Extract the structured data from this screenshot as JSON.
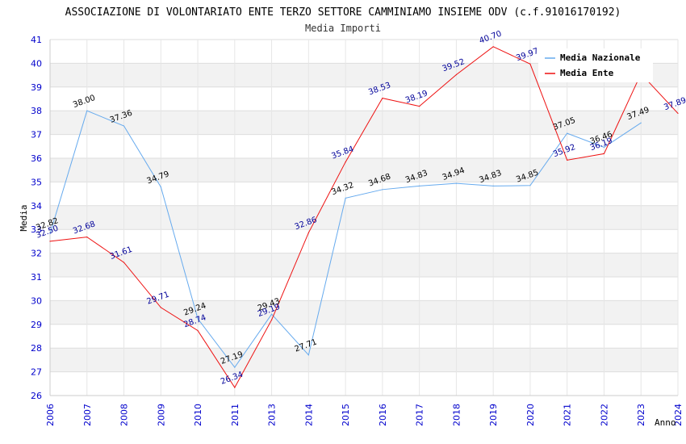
{
  "chart_data": {
    "type": "line",
    "title": "ASSOCIAZIONE DI VOLONTARIATO ENTE TERZO SETTORE CAMMINIAMO INSIEME ODV (c.f.91016170192)",
    "subtitle": "Media Importi",
    "xlabel": "Anno",
    "ylabel": "Media",
    "ylim": [
      26,
      41
    ],
    "yticks": [
      26,
      27,
      28,
      29,
      30,
      31,
      32,
      33,
      34,
      35,
      36,
      37,
      38,
      39,
      40,
      41
    ],
    "categories": [
      "2006",
      "2007",
      "2008",
      "2009",
      "2010",
      "2011",
      "2013",
      "2014",
      "2015",
      "2016",
      "2017",
      "2018",
      "2019",
      "2020",
      "2021",
      "2022",
      "2023",
      "2024"
    ],
    "grid": true,
    "legend_position": "top-right",
    "series": [
      {
        "name": "Media Nazionale",
        "color": "#66aaee",
        "values": [
          32.82,
          38.0,
          37.36,
          34.79,
          29.24,
          27.19,
          29.43,
          27.71,
          34.32,
          34.68,
          34.83,
          34.94,
          34.83,
          34.85,
          37.05,
          36.46,
          37.49,
          null
        ]
      },
      {
        "name": "Media Ente",
        "color": "#ee1111",
        "values": [
          32.5,
          32.68,
          31.61,
          29.71,
          28.74,
          26.34,
          29.19,
          32.86,
          35.84,
          38.53,
          38.19,
          39.52,
          40.7,
          39.97,
          35.92,
          36.19,
          39.56,
          37.89
        ]
      }
    ]
  }
}
